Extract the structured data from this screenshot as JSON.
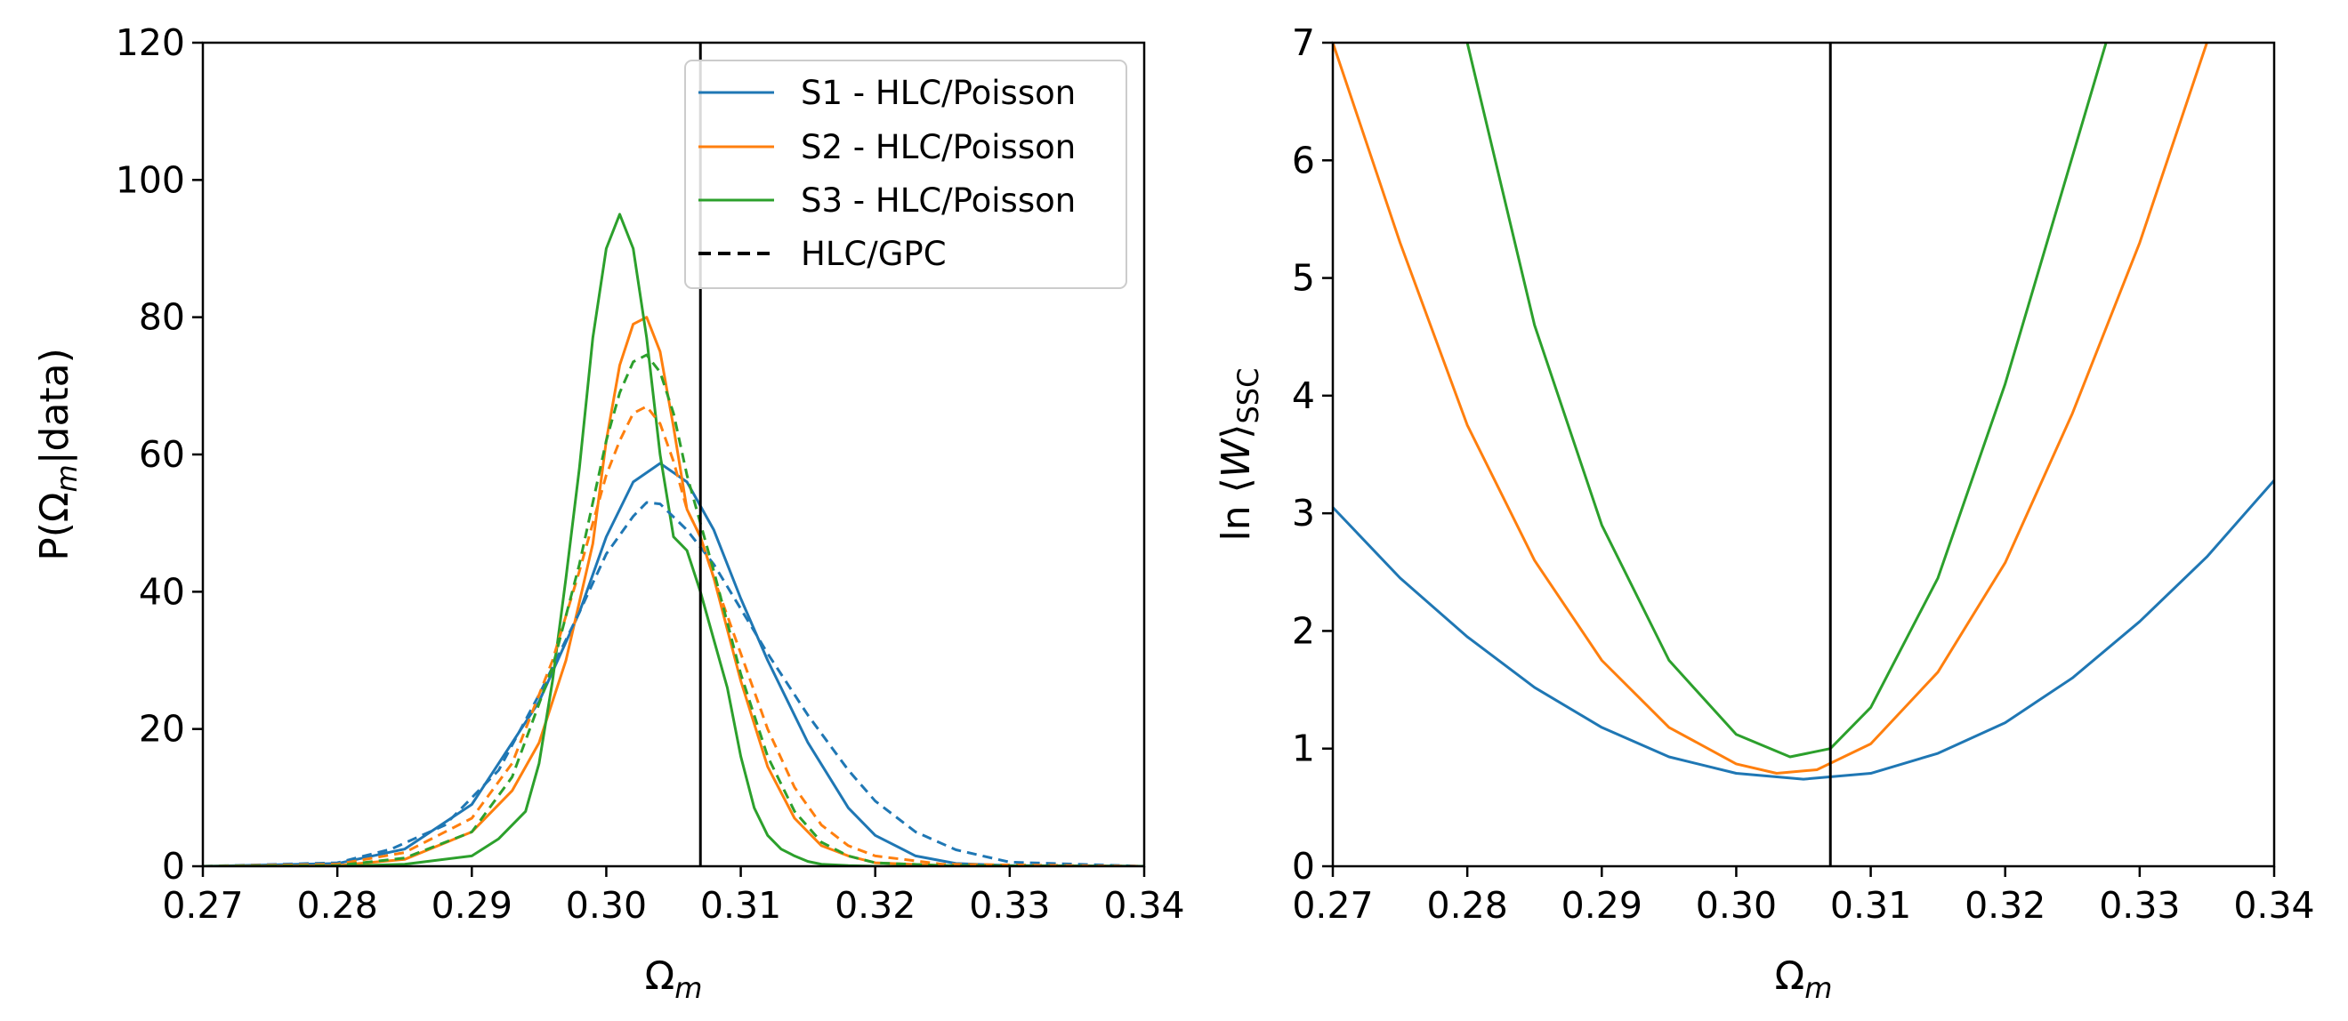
{
  "chart_data": [
    {
      "type": "line",
      "xlabel": "Ω_m",
      "ylabel": "P(Ω_m|data)",
      "xlim": [
        0.27,
        0.34
      ],
      "ylim": [
        0,
        120
      ],
      "xticks": [
        "0.27",
        "0.28",
        "0.29",
        "0.30",
        "0.31",
        "0.32",
        "0.33",
        "0.34"
      ],
      "yticks": [
        "0",
        "20",
        "40",
        "60",
        "80",
        "100",
        "120"
      ],
      "reference_line_x": 0.307,
      "legend_position": "top-right",
      "legend": [
        {
          "label": "S1 - HLC/Poisson",
          "color": "#1f77b4",
          "dash": "solid"
        },
        {
          "label": "S2 - HLC/Poisson",
          "color": "#ff7f0e",
          "dash": "solid"
        },
        {
          "label": "S3 - HLC/Poisson",
          "color": "#2ca02c",
          "dash": "solid"
        },
        {
          "label": "HLC/GPC",
          "color": "#000000",
          "dash": "dashed"
        }
      ],
      "series": [
        {
          "name": "S1 - HLC/Poisson",
          "color": "#1f77b4",
          "dash": "solid",
          "x": [
            0.27,
            0.28,
            0.285,
            0.29,
            0.295,
            0.298,
            0.3,
            0.302,
            0.304,
            0.306,
            0.308,
            0.31,
            0.312,
            0.315,
            0.318,
            0.32,
            0.323,
            0.326,
            0.33,
            0.34
          ],
          "y": [
            0,
            0.4,
            2.5,
            9,
            24,
            37,
            48,
            56,
            58.7,
            56,
            49,
            39,
            30,
            18,
            8.5,
            4.5,
            1.5,
            0.4,
            0.1,
            0
          ]
        },
        {
          "name": "S2 - HLC/Poisson",
          "color": "#ff7f0e",
          "dash": "solid",
          "x": [
            0.27,
            0.28,
            0.285,
            0.29,
            0.293,
            0.295,
            0.297,
            0.299,
            0.3,
            0.301,
            0.302,
            0.303,
            0.304,
            0.305,
            0.306,
            0.307,
            0.308,
            0.31,
            0.312,
            0.314,
            0.316,
            0.318,
            0.32,
            0.325,
            0.34
          ],
          "y": [
            0,
            0.1,
            1,
            5,
            11,
            18,
            30,
            47,
            62,
            73,
            79,
            80,
            75,
            64,
            52,
            48,
            42,
            27,
            14.5,
            7,
            3,
            1.5,
            0.5,
            0.1,
            0
          ]
        },
        {
          "name": "S3 - HLC/Poisson",
          "color": "#2ca02c",
          "dash": "solid",
          "x": [
            0.27,
            0.28,
            0.285,
            0.29,
            0.292,
            0.294,
            0.295,
            0.296,
            0.297,
            0.298,
            0.299,
            0.3,
            0.301,
            0.302,
            0.303,
            0.304,
            0.305,
            0.306,
            0.307,
            0.308,
            0.309,
            0.31,
            0.311,
            0.312,
            0.313,
            0.314,
            0.315,
            0.316,
            0.318,
            0.32,
            0.325,
            0.34
          ],
          "y": [
            0,
            0,
            0.3,
            1.5,
            4,
            8,
            15,
            27,
            42,
            58,
            77,
            90,
            95,
            90,
            77,
            60,
            48,
            46,
            40,
            33,
            26,
            16,
            8.5,
            4.5,
            2.5,
            1.5,
            0.7,
            0.3,
            0.1,
            0,
            0,
            0
          ]
        },
        {
          "name": "S1 - HLC/GPC",
          "color": "#1f77b4",
          "dash": "dashed",
          "x": [
            0.27,
            0.28,
            0.284,
            0.288,
            0.292,
            0.295,
            0.298,
            0.3,
            0.302,
            0.303,
            0.304,
            0.306,
            0.308,
            0.31,
            0.312,
            0.315,
            0.318,
            0.32,
            0.323,
            0.326,
            0.33,
            0.34
          ],
          "y": [
            0,
            0.5,
            2.5,
            6,
            14,
            25,
            37,
            45.5,
            51,
            53,
            52.8,
            49,
            44,
            37.5,
            31,
            22,
            14,
            9.5,
            5,
            2.4,
            0.6,
            0
          ]
        },
        {
          "name": "S2 - HLC/GPC",
          "color": "#ff7f0e",
          "dash": "dashed",
          "x": [
            0.27,
            0.28,
            0.285,
            0.29,
            0.293,
            0.296,
            0.298,
            0.3,
            0.301,
            0.302,
            0.303,
            0.304,
            0.305,
            0.306,
            0.307,
            0.308,
            0.31,
            0.312,
            0.314,
            0.316,
            0.318,
            0.32,
            0.325,
            0.34
          ],
          "y": [
            0,
            0.3,
            2,
            7,
            15,
            30,
            43,
            57,
            62,
            66,
            67,
            64.5,
            59,
            52,
            48,
            42,
            31,
            20,
            11.5,
            6,
            3,
            1.5,
            0.3,
            0
          ]
        },
        {
          "name": "S3 - HLC/GPC",
          "color": "#2ca02c",
          "dash": "dashed",
          "x": [
            0.27,
            0.28,
            0.285,
            0.29,
            0.293,
            0.296,
            0.298,
            0.3,
            0.301,
            0.302,
            0.303,
            0.304,
            0.305,
            0.306,
            0.307,
            0.308,
            0.31,
            0.312,
            0.314,
            0.316,
            0.318,
            0.32,
            0.325,
            0.34
          ],
          "y": [
            0,
            0.1,
            1.2,
            5,
            13,
            29,
            44,
            62,
            69,
            73.5,
            74.5,
            72,
            66,
            57,
            50,
            43,
            28,
            16,
            8,
            3.5,
            1.5,
            0.5,
            0.1,
            0
          ]
        }
      ]
    },
    {
      "type": "line",
      "xlabel": "Ω_m",
      "ylabel": "ln⟨W⟩_SSC",
      "xlim": [
        0.27,
        0.34
      ],
      "ylim": [
        0,
        7
      ],
      "xticks": [
        "0.27",
        "0.28",
        "0.29",
        "0.30",
        "0.31",
        "0.32",
        "0.33",
        "0.34"
      ],
      "yticks": [
        "0",
        "1",
        "2",
        "3",
        "4",
        "5",
        "6",
        "7"
      ],
      "reference_line_x": 0.307,
      "series": [
        {
          "color": "#1f77b4",
          "dash": "solid",
          "x": [
            0.27,
            0.275,
            0.28,
            0.285,
            0.29,
            0.295,
            0.3,
            0.305,
            0.31,
            0.315,
            0.32,
            0.325,
            0.33,
            0.335,
            0.34
          ],
          "y": [
            3.05,
            2.45,
            1.95,
            1.52,
            1.18,
            0.93,
            0.79,
            0.74,
            0.79,
            0.96,
            1.22,
            1.6,
            2.08,
            2.63,
            3.28
          ]
        },
        {
          "color": "#ff7f0e",
          "dash": "solid",
          "x": [
            0.27,
            0.275,
            0.28,
            0.285,
            0.29,
            0.295,
            0.3,
            0.303,
            0.306,
            0.31,
            0.315,
            0.32,
            0.325,
            0.33,
            0.335
          ],
          "y": [
            7.0,
            5.3,
            3.75,
            2.6,
            1.75,
            1.18,
            0.87,
            0.79,
            0.82,
            1.04,
            1.65,
            2.58,
            3.85,
            5.3,
            7.0
          ]
        },
        {
          "color": "#2ca02c",
          "dash": "solid",
          "x": [
            0.28,
            0.285,
            0.29,
            0.295,
            0.3,
            0.304,
            0.307,
            0.31,
            0.315,
            0.32,
            0.3275
          ],
          "y": [
            7.0,
            4.6,
            2.9,
            1.75,
            1.12,
            0.93,
            1.0,
            1.35,
            2.45,
            4.1,
            7.0
          ]
        }
      ]
    }
  ]
}
